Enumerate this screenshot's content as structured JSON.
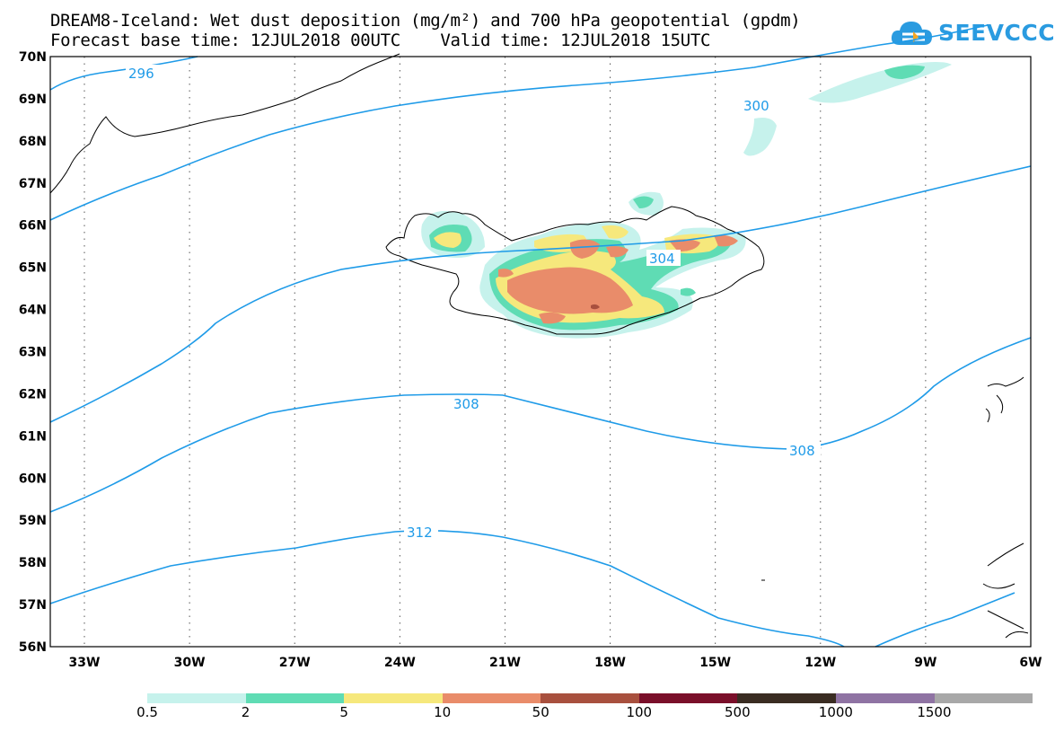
{
  "header": {
    "title_line1": "DREAM8-Iceland: Wet dust deposition (mg/m²) and 700 hPa geopotential (gpdm)",
    "title_line2": "Forecast base time: 12JUL2018 00UTC    Valid time: 12JUL2018 15UTC"
  },
  "logo": {
    "text": "SEEVCCC",
    "icon": "cloud-logo-icon",
    "color": "#2a9be0"
  },
  "map": {
    "lat_labels": [
      "70N",
      "69N",
      "68N",
      "67N",
      "66N",
      "65N",
      "64N",
      "63N",
      "62N",
      "61N",
      "60N",
      "59N",
      "58N",
      "57N",
      "56N"
    ],
    "lon_labels": [
      "33W",
      "30W",
      "27W",
      "24W",
      "21W",
      "18W",
      "15W",
      "12W",
      "9W",
      "6W"
    ],
    "contour_labels": [
      "296",
      "300",
      "304",
      "308",
      "308",
      "312"
    ],
    "contour_color": "#1f9be8",
    "coast_color": "#000000"
  },
  "colorbar": {
    "labels": [
      "0.5",
      "2",
      "5",
      "10",
      "50",
      "100",
      "500",
      "1000",
      "1500"
    ],
    "colors": [
      "#c6f2ec",
      "#5fdcb4",
      "#f6e87c",
      "#e98c6a",
      "#a8503e",
      "#7a0f2a",
      "#3a2c22",
      "#8f73a3",
      "#a8a8a8"
    ]
  }
}
